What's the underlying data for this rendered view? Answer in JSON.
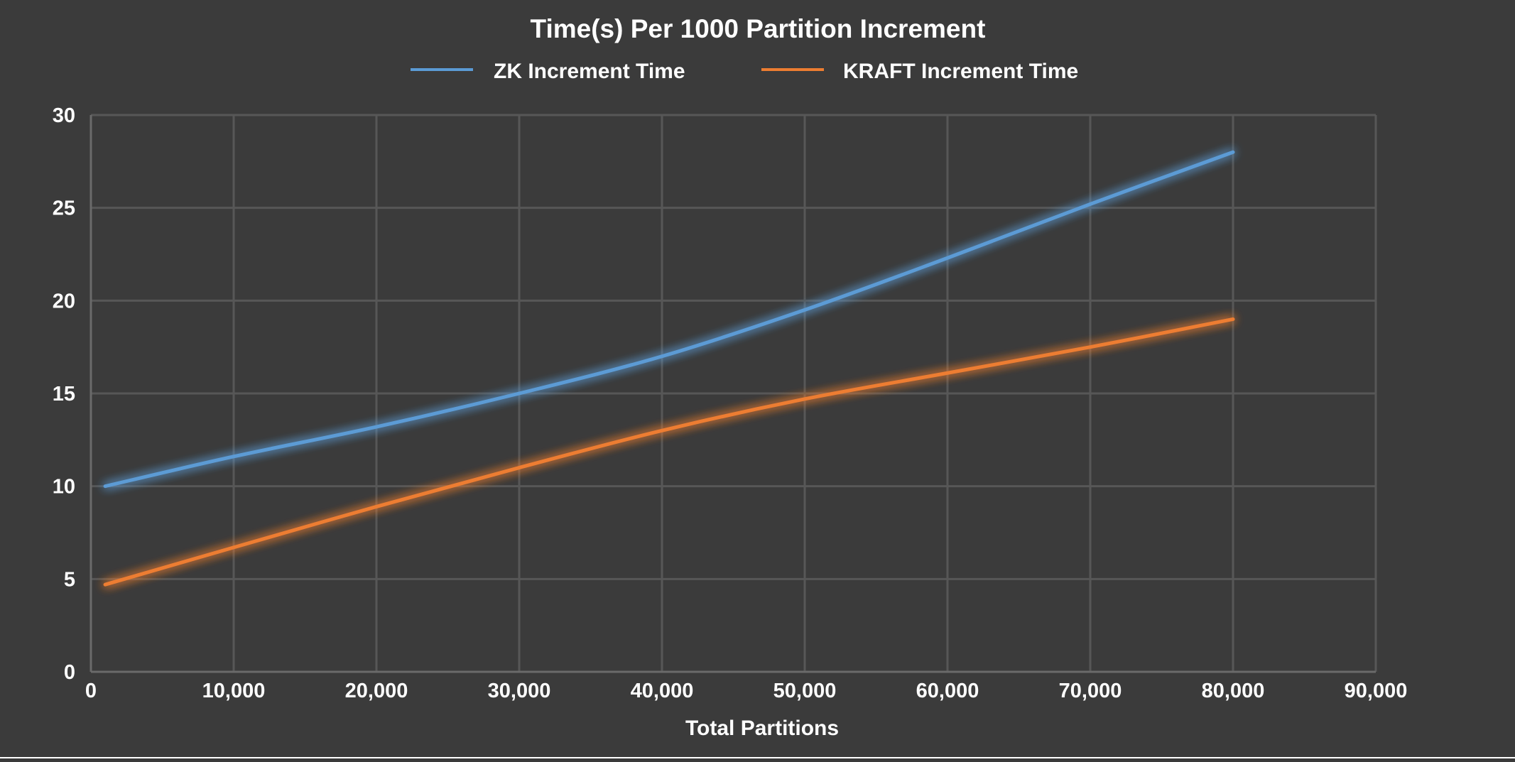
{
  "chart_data": {
    "type": "line",
    "title": "Time(s) Per 1000 Partition Increment",
    "xlabel": "Total Partitions",
    "ylabel": "",
    "xlim": [
      0,
      90000
    ],
    "ylim": [
      0,
      30
    ],
    "x_ticks": [
      0,
      10000,
      20000,
      30000,
      40000,
      50000,
      60000,
      70000,
      80000,
      90000
    ],
    "x_tick_labels": [
      "0",
      "10,000",
      "20,000",
      "30,000",
      "40,000",
      "50,000",
      "60,000",
      "70,000",
      "80,000",
      "90,000"
    ],
    "y_ticks": [
      0,
      5,
      10,
      15,
      20,
      25,
      30
    ],
    "y_tick_labels": [
      "0",
      "5",
      "10",
      "15",
      "20",
      "25",
      "30"
    ],
    "grid": true,
    "legend_position": "top",
    "series": [
      {
        "name": "ZK Increment Time",
        "color": "#5b9bd5",
        "x": [
          1000,
          10000,
          20000,
          30000,
          40000,
          50000,
          60000,
          70000,
          80000
        ],
        "y": [
          10,
          11.6,
          13.2,
          15,
          17,
          19.5,
          22.3,
          25.2,
          28
        ]
      },
      {
        "name": "KRAFT Increment Time",
        "color": "#ed7d31",
        "x": [
          1000,
          10000,
          20000,
          30000,
          40000,
          50000,
          60000,
          70000,
          80000
        ],
        "y": [
          4.7,
          6.7,
          8.9,
          11,
          13,
          14.7,
          16.1,
          17.5,
          19
        ]
      }
    ]
  }
}
